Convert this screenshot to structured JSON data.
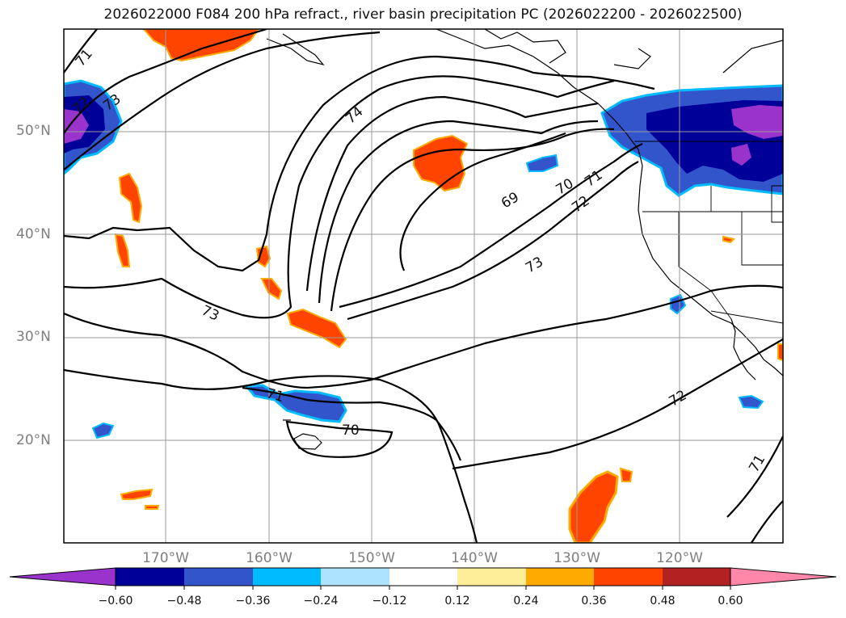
{
  "title": "2026022000 F084 200 hPa refract., river basin precipitation PC (2026022200 - 2026022500)",
  "map": {
    "lon_range": [
      -180,
      -110
    ],
    "lat_range": [
      10,
      60
    ],
    "lat_labels": [
      "50°N",
      "40°N",
      "30°N",
      "20°N"
    ],
    "lon_labels": [
      "170°W",
      "160°W",
      "150°W",
      "140°W",
      "130°W",
      "120°W"
    ],
    "grid": true,
    "contour_labels": [
      "71",
      "72",
      "73",
      "74",
      "69",
      "70",
      "71",
      "72",
      "73",
      "73",
      "71",
      "70",
      "72",
      "71"
    ]
  },
  "colorbar": {
    "colors": [
      "#9933cc",
      "#000099",
      "#3355cc",
      "#00bbff",
      "#aee3ff",
      "#ffffff",
      "#ffee99",
      "#ffaa00",
      "#ff4400",
      "#b22222",
      "#ff88aa"
    ],
    "ticks": [
      "−0.60",
      "−0.48",
      "−0.36",
      "−0.24",
      "−0.12",
      "0.12",
      "0.24",
      "0.36",
      "0.48",
      "0.60"
    ],
    "extend": "both"
  }
}
